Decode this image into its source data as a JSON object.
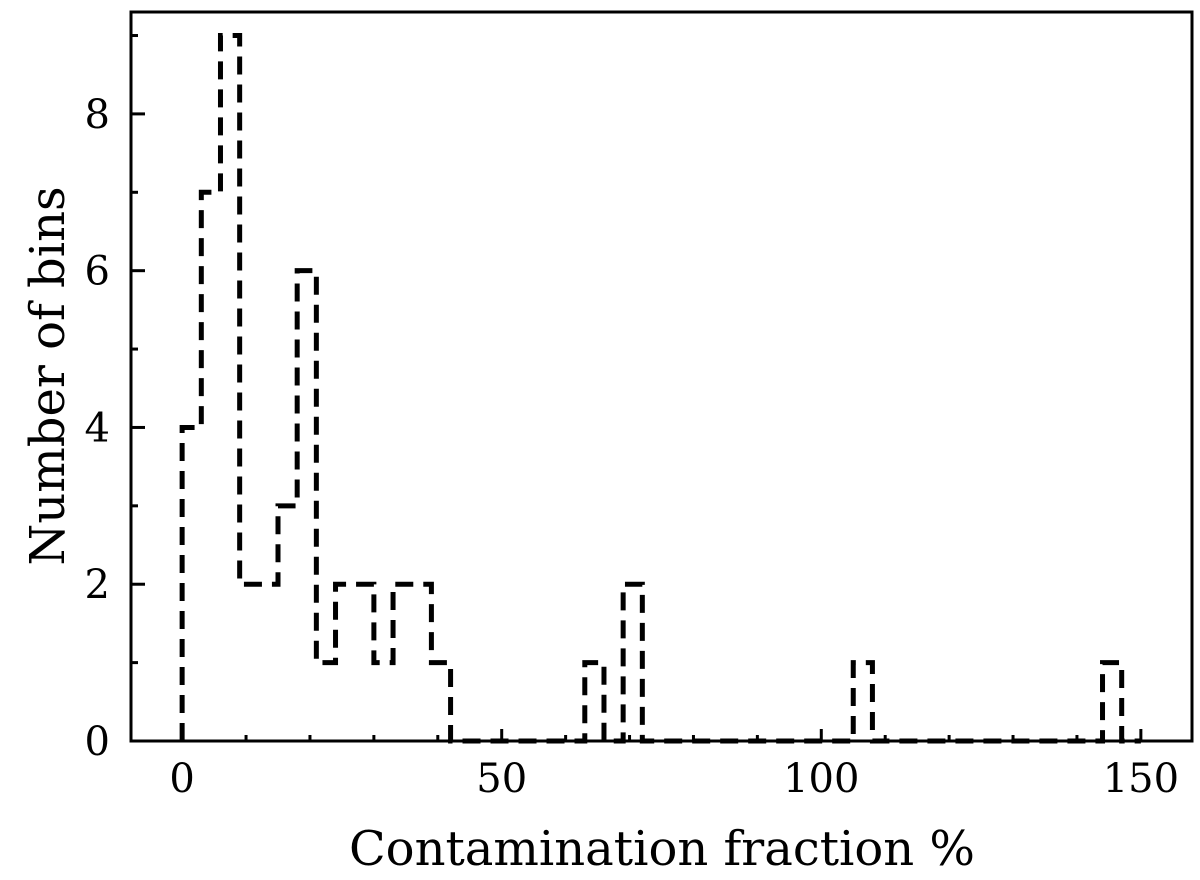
{
  "chart_data": {
    "type": "histogram",
    "xlabel": "Contamination fraction %",
    "ylabel": "Number of bins",
    "xlim": [
      -8,
      158
    ],
    "ylim": [
      0,
      9.3
    ],
    "x_ticks": [
      0,
      50,
      100,
      150
    ],
    "x_tick_labels": [
      "0",
      "50",
      "100",
      "150"
    ],
    "y_ticks": [
      0,
      2,
      4,
      6,
      8
    ],
    "y_tick_labels": [
      "0",
      "2",
      "4",
      "6",
      "8"
    ],
    "grid": false,
    "bin_width": 3,
    "bin_edges_start": 0,
    "counts": [
      4,
      7,
      9,
      2,
      2,
      3,
      6,
      1,
      2,
      2,
      1,
      2,
      2,
      1,
      0,
      0,
      0,
      0,
      0,
      0,
      0,
      1,
      0,
      2,
      0,
      0,
      0,
      0,
      0,
      0,
      0,
      0,
      0,
      0,
      0,
      1,
      0,
      0,
      0,
      0,
      0,
      0,
      0,
      0,
      0,
      0,
      0,
      0,
      1,
      0
    ],
    "line_style": "dashed",
    "line_color": "#000000"
  }
}
